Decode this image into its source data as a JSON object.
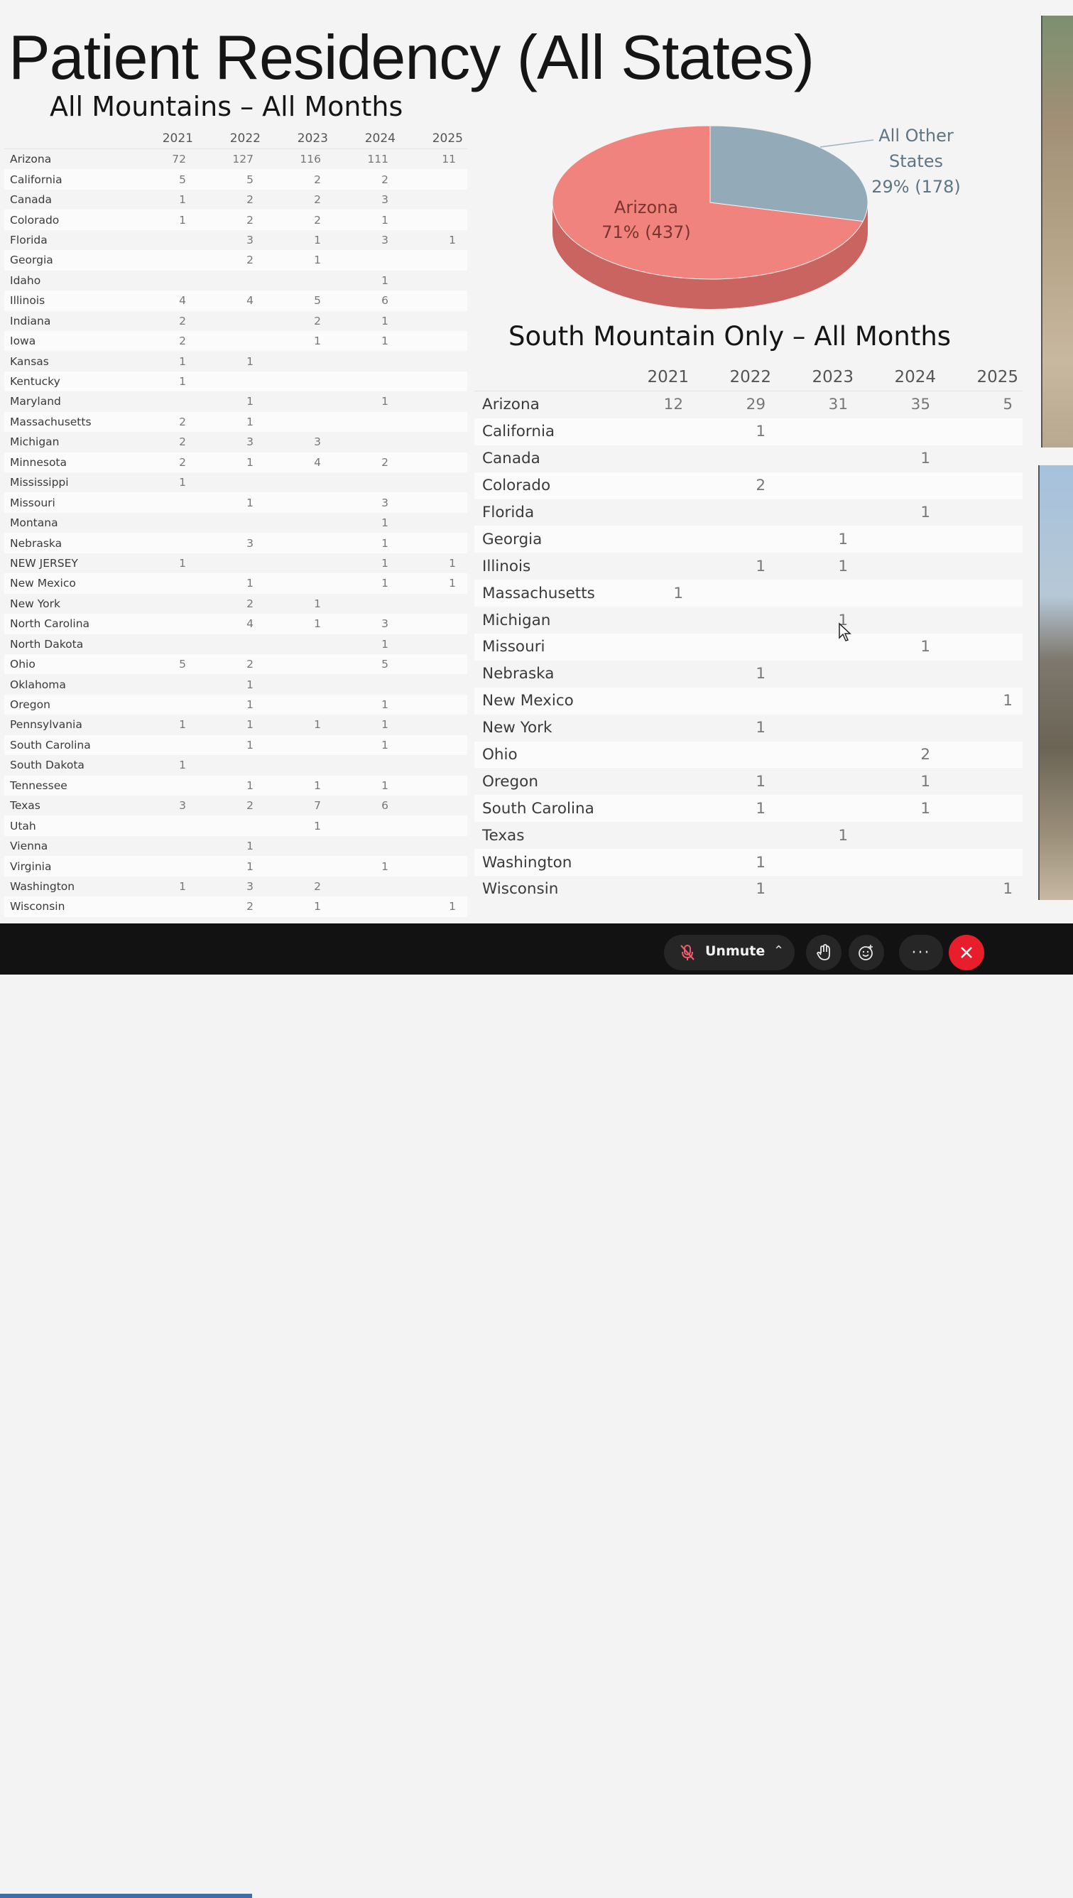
{
  "slide": {
    "title": "Patient Residency (All States)",
    "subtitle_all": "All Mountains – All Months",
    "subtitle_south": "South Mountain Only – All Months"
  },
  "table_all": {
    "years": [
      "2021",
      "2022",
      "2023",
      "2024",
      "2025"
    ],
    "rows": [
      {
        "state": "Arizona",
        "values": [
          "72",
          "127",
          "116",
          "111",
          "11"
        ]
      },
      {
        "state": "California",
        "values": [
          "5",
          "5",
          "2",
          "2",
          ""
        ]
      },
      {
        "state": "Canada",
        "values": [
          "1",
          "2",
          "2",
          "3",
          ""
        ]
      },
      {
        "state": "Colorado",
        "values": [
          "1",
          "2",
          "2",
          "1",
          ""
        ]
      },
      {
        "state": "Florida",
        "values": [
          "",
          "3",
          "1",
          "3",
          "1"
        ]
      },
      {
        "state": "Georgia",
        "values": [
          "",
          "2",
          "1",
          "",
          ""
        ]
      },
      {
        "state": "Idaho",
        "values": [
          "",
          "",
          "",
          "1",
          ""
        ]
      },
      {
        "state": "Illinois",
        "values": [
          "4",
          "4",
          "5",
          "6",
          ""
        ]
      },
      {
        "state": "Indiana",
        "values": [
          "2",
          "",
          "2",
          "1",
          ""
        ]
      },
      {
        "state": "Iowa",
        "values": [
          "2",
          "",
          "1",
          "1",
          ""
        ]
      },
      {
        "state": "Kansas",
        "values": [
          "1",
          "1",
          "",
          "",
          ""
        ]
      },
      {
        "state": "Kentucky",
        "values": [
          "1",
          "",
          "",
          "",
          ""
        ]
      },
      {
        "state": "Maryland",
        "values": [
          "",
          "1",
          "",
          "1",
          ""
        ]
      },
      {
        "state": "Massachusetts",
        "values": [
          "2",
          "1",
          "",
          "",
          ""
        ]
      },
      {
        "state": "Michigan",
        "values": [
          "2",
          "3",
          "3",
          "",
          ""
        ]
      },
      {
        "state": "Minnesota",
        "values": [
          "2",
          "1",
          "4",
          "2",
          ""
        ]
      },
      {
        "state": "Mississippi",
        "values": [
          "1",
          "",
          "",
          "",
          ""
        ]
      },
      {
        "state": "Missouri",
        "values": [
          "",
          "1",
          "",
          "3",
          ""
        ]
      },
      {
        "state": "Montana",
        "values": [
          "",
          "",
          "",
          "1",
          ""
        ]
      },
      {
        "state": "Nebraska",
        "values": [
          "",
          "3",
          "",
          "1",
          ""
        ]
      },
      {
        "state": "NEW JERSEY",
        "values": [
          "1",
          "",
          "",
          "1",
          "1"
        ]
      },
      {
        "state": "New Mexico",
        "values": [
          "",
          "1",
          "",
          "1",
          "1"
        ]
      },
      {
        "state": "New York",
        "values": [
          "",
          "2",
          "1",
          "",
          ""
        ]
      },
      {
        "state": "North Carolina",
        "values": [
          "",
          "4",
          "1",
          "3",
          ""
        ]
      },
      {
        "state": "North Dakota",
        "values": [
          "",
          "",
          "",
          "1",
          ""
        ]
      },
      {
        "state": "Ohio",
        "values": [
          "5",
          "2",
          "",
          "5",
          ""
        ]
      },
      {
        "state": "Oklahoma",
        "values": [
          "",
          "1",
          "",
          "",
          ""
        ]
      },
      {
        "state": "Oregon",
        "values": [
          "",
          "1",
          "",
          "1",
          ""
        ]
      },
      {
        "state": "Pennsylvania",
        "values": [
          "1",
          "1",
          "1",
          "1",
          ""
        ]
      },
      {
        "state": "South Carolina",
        "values": [
          "",
          "1",
          "",
          "1",
          ""
        ]
      },
      {
        "state": "South Dakota",
        "values": [
          "1",
          "",
          "",
          "",
          ""
        ]
      },
      {
        "state": "Tennessee",
        "values": [
          "",
          "1",
          "1",
          "1",
          ""
        ]
      },
      {
        "state": "Texas",
        "values": [
          "3",
          "2",
          "7",
          "6",
          ""
        ]
      },
      {
        "state": "Utah",
        "values": [
          "",
          "",
          "1",
          "",
          ""
        ]
      },
      {
        "state": "Vienna",
        "values": [
          "",
          "1",
          "",
          "",
          ""
        ]
      },
      {
        "state": "Virginia",
        "values": [
          "",
          "1",
          "",
          "1",
          ""
        ]
      },
      {
        "state": "Washington",
        "values": [
          "1",
          "3",
          "2",
          "",
          ""
        ]
      },
      {
        "state": "Wisconsin",
        "values": [
          "",
          "2",
          "1",
          "",
          "1"
        ]
      }
    ]
  },
  "table_south": {
    "years": [
      "2021",
      "2022",
      "2023",
      "2024",
      "2025"
    ],
    "rows": [
      {
        "state": "Arizona",
        "values": [
          "12",
          "29",
          "31",
          "35",
          "5"
        ]
      },
      {
        "state": "California",
        "values": [
          "",
          "1",
          "",
          "",
          ""
        ]
      },
      {
        "state": "Canada",
        "values": [
          "",
          "",
          "",
          "1",
          ""
        ]
      },
      {
        "state": "Colorado",
        "values": [
          "",
          "2",
          "",
          "",
          ""
        ]
      },
      {
        "state": "Florida",
        "values": [
          "",
          "",
          "",
          "1",
          ""
        ]
      },
      {
        "state": "Georgia",
        "values": [
          "",
          "",
          "1",
          "",
          ""
        ]
      },
      {
        "state": "Illinois",
        "values": [
          "",
          "1",
          "1",
          "",
          ""
        ]
      },
      {
        "state": "Massachusetts",
        "values": [
          "1",
          "",
          "",
          "",
          ""
        ]
      },
      {
        "state": "Michigan",
        "values": [
          "",
          "",
          "1",
          "",
          ""
        ]
      },
      {
        "state": "Missouri",
        "values": [
          "",
          "",
          "",
          "1",
          ""
        ]
      },
      {
        "state": "Nebraska",
        "values": [
          "",
          "1",
          "",
          "",
          ""
        ]
      },
      {
        "state": "New Mexico",
        "values": [
          "",
          "",
          "",
          "",
          "1"
        ]
      },
      {
        "state": "New York",
        "values": [
          "",
          "1",
          "",
          "",
          ""
        ]
      },
      {
        "state": "Ohio",
        "values": [
          "",
          "",
          "",
          "2",
          ""
        ]
      },
      {
        "state": "Oregon",
        "values": [
          "",
          "1",
          "",
          "1",
          ""
        ]
      },
      {
        "state": "South Carolina",
        "values": [
          "",
          "1",
          "",
          "1",
          ""
        ]
      },
      {
        "state": "Texas",
        "values": [
          "",
          "",
          "1",
          "",
          ""
        ]
      },
      {
        "state": "Washington",
        "values": [
          "",
          "1",
          "",
          "",
          ""
        ]
      },
      {
        "state": "Wisconsin",
        "values": [
          "",
          "1",
          "",
          "",
          "1"
        ]
      }
    ]
  },
  "chart_data": {
    "type": "pie",
    "title": "",
    "slices": [
      {
        "label": "Arizona",
        "percent_label": "71% (437)",
        "value": 437,
        "color": "#f0837d"
      },
      {
        "label": "All Other States",
        "percent_label": "29% (178)",
        "value": 178,
        "color": "#93aab9"
      }
    ],
    "legend": "none",
    "label_placement": "on-slice / outside"
  },
  "taskbar": {
    "unmute_label": "Unmute",
    "more_label": "···",
    "icons": [
      "mic-off-icon",
      "chevron-up-icon",
      "raise-hand-icon",
      "reactions-icon",
      "more-icon",
      "close-icon"
    ],
    "leave_color": "#e81e2d"
  }
}
